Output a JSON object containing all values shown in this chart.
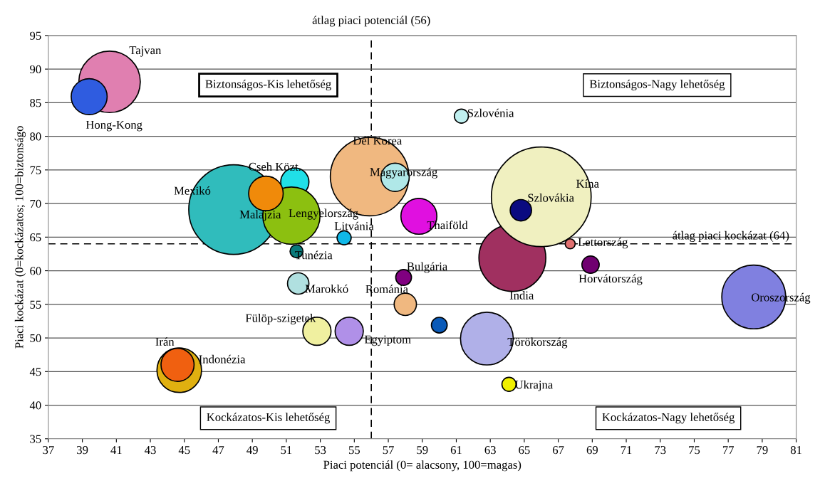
{
  "chart_data": {
    "type": "bubble",
    "xlabel": "Piaci potenciál (0= alacsony, 100=magas)",
    "ylabel": "Piaci kockázat (0=kockázatos; 100=biztonságo",
    "xlim": [
      37,
      81
    ],
    "xticks": [
      37,
      39,
      41,
      43,
      45,
      47,
      49,
      51,
      53,
      55,
      57,
      59,
      61,
      63,
      65,
      67,
      69,
      71,
      73,
      75,
      77,
      79,
      81
    ],
    "ylim": [
      35,
      95
    ],
    "yticks": [
      35,
      40,
      45,
      50,
      55,
      60,
      65,
      70,
      75,
      80,
      85,
      90,
      95
    ],
    "grid": "y",
    "ref_lines": [
      {
        "axis": "x",
        "value": 56,
        "label": "átlag piaci potenciál (56)",
        "line_style": "dashed",
        "color": "#000000"
      },
      {
        "axis": "y",
        "value": 64,
        "label": "átlag piaci kockázat (64)",
        "line_style": "dashed",
        "color": "#000000"
      }
    ],
    "annotations": [
      "Biztonságos-Kis lehetőség",
      "Biztonságos-Nagy lehetőség",
      "Kockázatos-Kis lehetőség",
      "Kockázatos-Nagy lehetőség"
    ],
    "series": [
      {
        "name": "Tajvan",
        "color": "#e07fb0",
        "x": [
          40.6
        ],
        "values": [
          88.1
        ],
        "sizes": [
          0.38
        ]
      },
      {
        "name": "Hong-Kong",
        "color": "#2f5ce0",
        "x": [
          39.4
        ],
        "values": [
          85.9
        ],
        "sizes": [
          0.13
        ]
      },
      {
        "name": "Mexikó",
        "color": "#30bcbc",
        "x": [
          47.9
        ],
        "values": [
          69.1
        ],
        "sizes": [
          0.81
        ]
      },
      {
        "name": "Cseh Közt.",
        "color": "#20e0e8",
        "x": [
          51.5
        ],
        "values": [
          73.2
        ],
        "sizes": [
          0.08
        ]
      },
      {
        "name": "Lengyelország",
        "color": "#8cc010",
        "x": [
          51.3
        ],
        "values": [
          68.2
        ],
        "sizes": [
          0.33
        ]
      },
      {
        "name": "Malajzia",
        "color": "#f08a0a",
        "x": [
          49.8
        ],
        "values": [
          71.5
        ],
        "sizes": [
          0.12
        ]
      },
      {
        "name": "Tunézia",
        "color": "#0a7a7a",
        "x": [
          51.6
        ],
        "values": [
          62.9
        ],
        "sizes": [
          0.017
        ]
      },
      {
        "name": "Litvánia",
        "color": "#10b8e8",
        "x": [
          54.4
        ],
        "values": [
          64.9
        ],
        "sizes": [
          0.02
        ]
      },
      {
        "name": "Dél Korea",
        "color": "#f0b880",
        "x": [
          55.9
        ],
        "values": [
          74.0
        ],
        "sizes": [
          0.62
        ]
      },
      {
        "name": "Magyarország",
        "color": "#b0e8e8",
        "x": [
          57.4
        ],
        "values": [
          73.9
        ],
        "sizes": [
          0.08
        ]
      },
      {
        "name": "Szlovénia",
        "color": "#c0f0f0",
        "x": [
          61.3
        ],
        "values": [
          83.0
        ],
        "sizes": [
          0.02
        ]
      },
      {
        "name": "Thaiföld",
        "color": "#e010e0",
        "x": [
          58.8
        ],
        "values": [
          68.1
        ],
        "sizes": [
          0.13
        ]
      },
      {
        "name": "India",
        "color": "#a03060",
        "x": [
          64.3
        ],
        "values": [
          61.9
        ],
        "sizes": [
          0.45
        ]
      },
      {
        "name": "Kína",
        "color": "#f0f0c0",
        "x": [
          66.0
        ],
        "values": [
          71.0
        ],
        "sizes": [
          1
        ]
      },
      {
        "name": "Szlovákia",
        "color": "#0a0a80",
        "x": [
          64.8
        ],
        "values": [
          69.0
        ],
        "sizes": [
          0.046
        ]
      },
      {
        "name": "Lettország",
        "color": "#e07070",
        "x": [
          67.7
        ],
        "values": [
          64.0
        ],
        "sizes": [
          0.01
        ]
      },
      {
        "name": "Horvátország",
        "color": "#700070",
        "x": [
          68.9
        ],
        "values": [
          60.9
        ],
        "sizes": [
          0.03
        ]
      },
      {
        "name": "Bulgária",
        "color": "#800080",
        "x": [
          57.9
        ],
        "values": [
          59.0
        ],
        "sizes": [
          0.025
        ]
      },
      {
        "name": "Románia",
        "color": "#f0b880",
        "x": [
          58.0
        ],
        "values": [
          55.0
        ],
        "sizes": [
          0.05
        ]
      },
      {
        "name": "Oroszország",
        "color": "#8080e0",
        "x": [
          78.5
        ],
        "values": [
          56.1
        ],
        "sizes": [
          0.41
        ]
      },
      {
        "name": "Törökország",
        "color": "#b0b0e8",
        "x": [
          62.8
        ],
        "values": [
          49.9
        ],
        "sizes": [
          0.28
        ]
      },
      {
        "name": "Ukrajna",
        "color": "#f0f000",
        "x": [
          64.1
        ],
        "values": [
          43.1
        ],
        "sizes": [
          0.02
        ]
      },
      {
        "color": "#0a5ab8",
        "x": [
          60.0
        ],
        "values": [
          51.9
        ],
        "sizes": [
          0.025
        ]
      },
      {
        "name": "Egyiptom",
        "color": "#b090e8",
        "x": [
          54.7
        ],
        "values": [
          51.0
        ],
        "sizes": [
          0.08
        ]
      },
      {
        "name": "Fülöp-szigetek",
        "color": "#f0f0a0",
        "x": [
          52.8
        ],
        "values": [
          51.0
        ],
        "sizes": [
          0.08
        ]
      },
      {
        "name": "Marokkó",
        "color": "#b0e0e0",
        "x": [
          51.7
        ],
        "values": [
          58.1
        ],
        "sizes": [
          0.046
        ]
      },
      {
        "name": "Indonézia",
        "color": "#e0b010",
        "x": [
          44.7
        ],
        "values": [
          45.2
        ],
        "sizes": [
          0.2
        ]
      },
      {
        "name": "Irán",
        "color": "#f06010",
        "x": [
          44.6
        ],
        "values": [
          46.0
        ],
        "sizes": [
          0.11
        ]
      }
    ]
  }
}
